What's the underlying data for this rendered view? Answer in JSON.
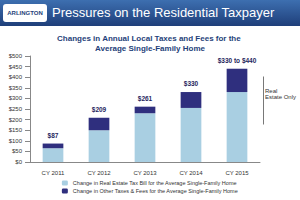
{
  "header": {
    "title": "Pressures on the Residential Taxpayer",
    "logo": "ARLINGTON"
  },
  "chart_data": {
    "type": "bar",
    "title": "Changes in Annual Local Taxes and Fees for the Average Single-Family Home",
    "categories": [
      "CY 2011",
      "CY 2012",
      "CY 2013",
      "CY 2014",
      "CY 2015"
    ],
    "series": [
      {
        "name": "Change in Real Estate Tax Bill for the Average Single-Family Home",
        "color": "#a9cfe2",
        "values": [
          65,
          150,
          230,
          255,
          330
        ]
      },
      {
        "name": "Change in Other Taxes & Fees for the Average Single-Family Home",
        "color": "#2f2f7e",
        "values": [
          22,
          59,
          31,
          75,
          110
        ]
      }
    ],
    "stacked": true,
    "ylim": [
      0,
      500
    ],
    "yticks": [
      {
        "value": 0,
        "label": "$0"
      },
      {
        "value": 50,
        "label": "$50"
      },
      {
        "value": 100,
        "label": "$100"
      },
      {
        "value": 150,
        "label": "$150"
      },
      {
        "value": 200,
        "label": "$200"
      },
      {
        "value": 250,
        "label": "$250"
      },
      {
        "value": 300,
        "label": "$300"
      },
      {
        "value": 350,
        "label": "$350"
      },
      {
        "value": 400,
        "label": "$400"
      },
      {
        "value": 450,
        "label": "$450"
      },
      {
        "value": 500,
        "label": "$500"
      }
    ],
    "grid": false,
    "legend": "bottom",
    "annotations": [
      {
        "category": "CY 2011",
        "text": "$87"
      },
      {
        "category": "CY 2012",
        "text": "$209"
      },
      {
        "category": "CY 2013",
        "text": "$261"
      },
      {
        "category": "CY 2014",
        "text": "$330"
      },
      {
        "category": "CY 2015",
        "text": "$330 to $440"
      }
    ],
    "side_note": "Real Estate Only"
  }
}
